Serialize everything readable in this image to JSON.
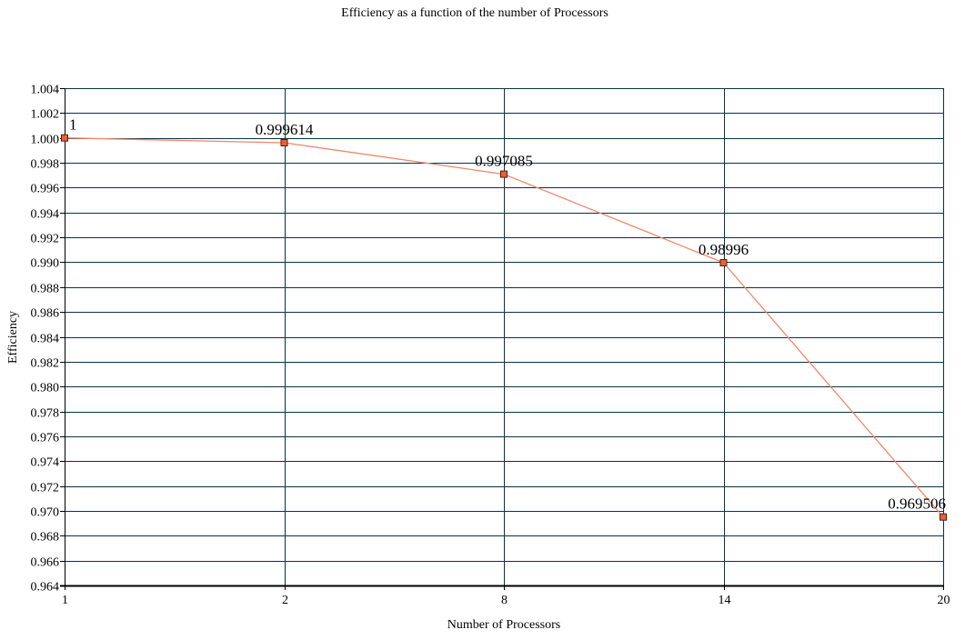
{
  "chart_data": {
    "type": "line",
    "title": "Efficiency as a function of the number of Processors",
    "xlabel": "Number of Processors",
    "ylabel": "Efficiency",
    "categories": [
      "1",
      "2",
      "8",
      "14",
      "20"
    ],
    "series": [
      {
        "values": [
          1,
          0.999614,
          0.997085,
          0.98996,
          0.969506
        ],
        "data_labels": [
          "1",
          "0.999614",
          "0.997085",
          "0.98996",
          "0.969506"
        ]
      }
    ],
    "ylim": [
      0.964,
      1.004
    ],
    "yticks": [
      "0.964",
      "0.966",
      "0.968",
      "0.970",
      "0.972",
      "0.974",
      "0.976",
      "0.978",
      "0.980",
      "0.982",
      "0.984",
      "0.986",
      "0.988",
      "0.990",
      "0.992",
      "0.994",
      "0.996",
      "0.998",
      "1.000",
      "1.002",
      "1.004"
    ],
    "grid": true,
    "legend": "none",
    "colors": {
      "line": "#F0876A",
      "marker_fill": "#E8603A",
      "marker_stroke": "#5A1A0A",
      "grid": "#0B3142",
      "axis": "#000000"
    }
  }
}
